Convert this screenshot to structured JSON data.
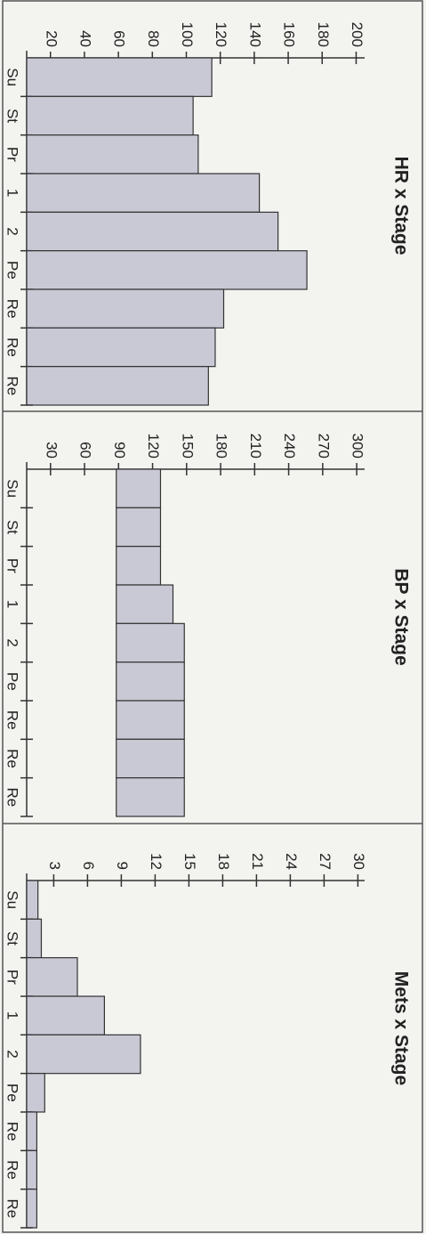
{
  "chart_data": [
    {
      "type": "bar",
      "title": "HR x Stage",
      "categories": [
        "Su",
        "St",
        "Pr",
        "1",
        "2",
        "Pe",
        "Re",
        "Re",
        "Re"
      ],
      "values": [
        115,
        104,
        107,
        143,
        154,
        171,
        122,
        117,
        113
      ],
      "color": "#c9c9d6",
      "ylim": [
        6,
        205
      ],
      "yticks": [
        20,
        40,
        60,
        80,
        100,
        120,
        140,
        160,
        180,
        200
      ]
    },
    {
      "type": "floating-bar",
      "title": "BP x Stage",
      "categories": [
        "Su",
        "St",
        "Pr",
        "1",
        "2",
        "Pe",
        "Re",
        "Re",
        "Re"
      ],
      "lows": [
        88,
        88,
        88,
        88,
        88,
        88,
        88,
        88,
        88
      ],
      "values": [
        127,
        127,
        127,
        138,
        148,
        148,
        148,
        148,
        148
      ],
      "color": "#c9c9d6",
      "ylim": [
        9,
        307
      ],
      "yticks": [
        30,
        60,
        90,
        120,
        150,
        180,
        210,
        240,
        270,
        300
      ]
    },
    {
      "type": "bar",
      "title": "Mets x Stage",
      "categories": [
        "Su",
        "St",
        "Pr",
        "1",
        "2",
        "Pe",
        "Re",
        "Re",
        "Re"
      ],
      "values": [
        1.6,
        1.9,
        5.1,
        7.5,
        10.7,
        2.2,
        1.5,
        1.5,
        1.5
      ],
      "color": "#c9c9d6",
      "ylim": [
        0.6,
        30.6
      ],
      "yticks": [
        3,
        6,
        9,
        12,
        15,
        18,
        21,
        24,
        27,
        30
      ]
    }
  ]
}
